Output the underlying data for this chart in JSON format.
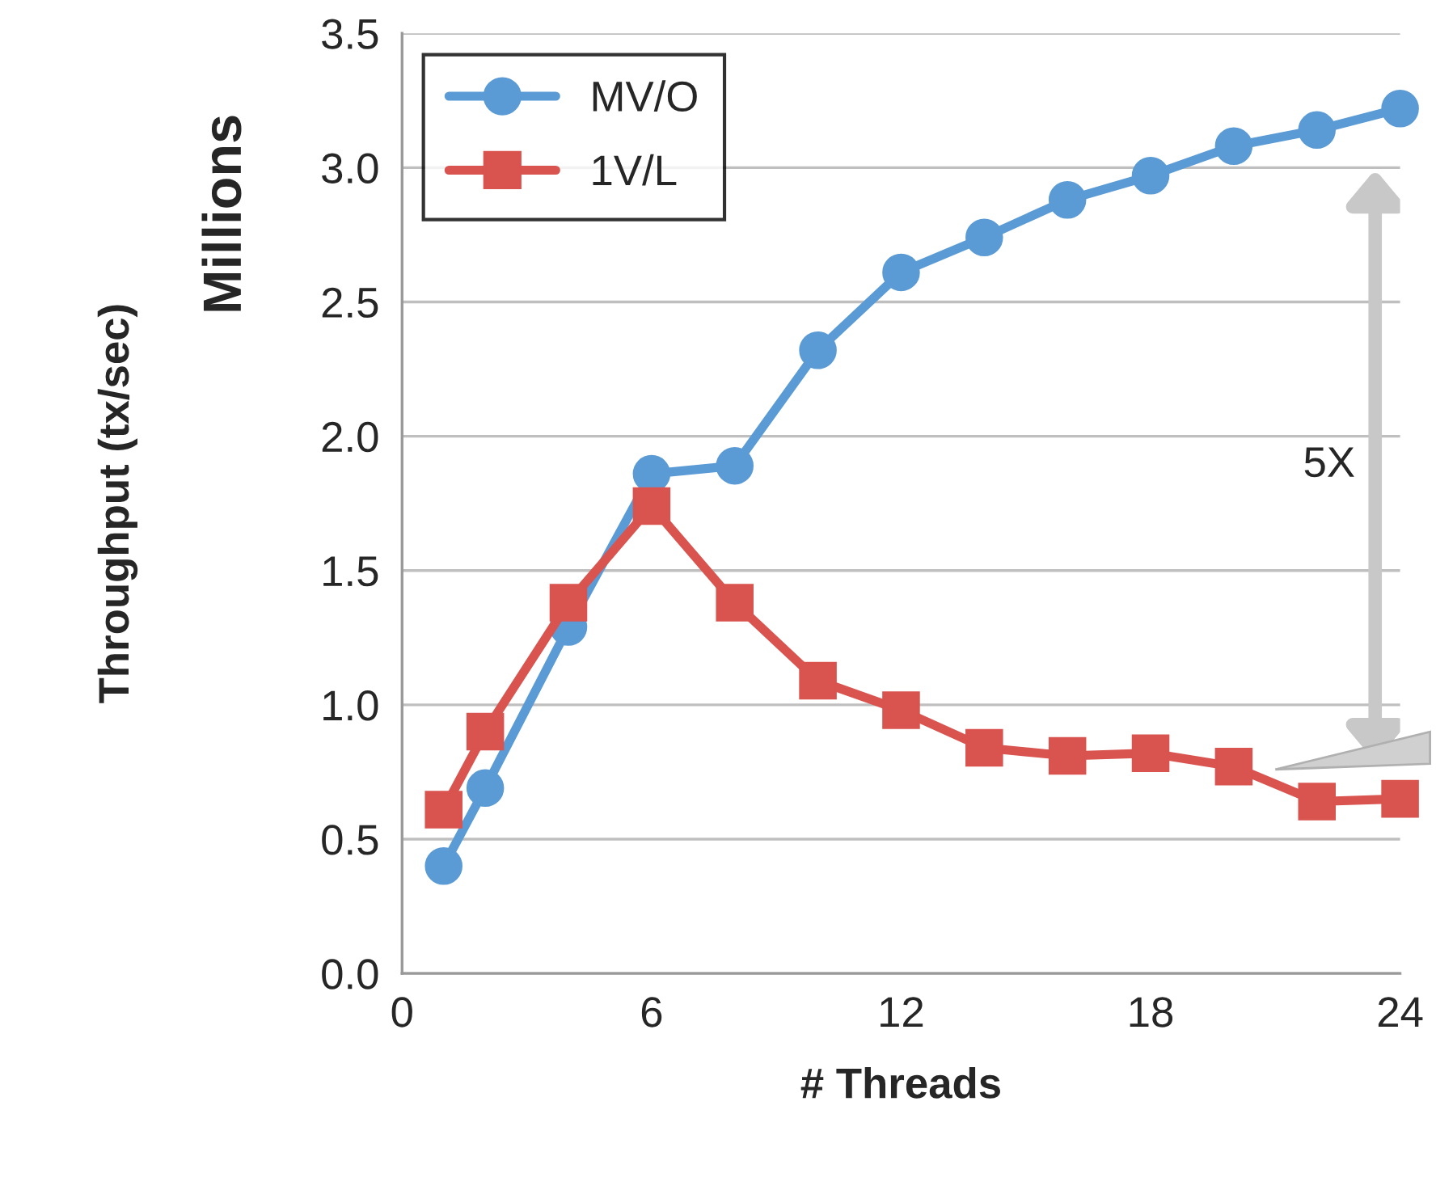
{
  "chart_data": {
    "type": "line",
    "xlabel": "# Threads",
    "ylabel": "Throughput (tx/sec)",
    "x": [
      1,
      2,
      4,
      6,
      8,
      10,
      12,
      14,
      16,
      18,
      20,
      22,
      24
    ],
    "series": [
      {
        "name": "MV/O",
        "color": "#5b9bd5",
        "marker": "circle",
        "values": [
          0.4,
          0.69,
          1.29,
          1.86,
          1.89,
          2.32,
          2.61,
          2.74,
          2.88,
          2.97,
          3.08,
          3.14,
          3.22
        ]
      },
      {
        "name": "1V/L",
        "color": "#d9534f",
        "marker": "square",
        "values": [
          0.61,
          0.9,
          1.38,
          1.74,
          1.38,
          1.09,
          0.98,
          0.84,
          0.81,
          0.82,
          0.77,
          0.64,
          0.65
        ]
      }
    ],
    "xlim": [
      0,
      24
    ],
    "xticks": [
      0,
      6,
      12,
      18,
      24
    ],
    "ylim": [
      0,
      3.5
    ],
    "yticks": [
      {
        "value": 0,
        "label": "0.0"
      },
      {
        "value": 0.5,
        "label": "0.5"
      },
      {
        "value": 1,
        "label": "1.0"
      },
      {
        "value": 1.5,
        "label": "1.5"
      },
      {
        "value": 2,
        "label": "2.0"
      },
      {
        "value": 2.5,
        "label": "2.5"
      },
      {
        "value": 3,
        "label": "3.0"
      },
      {
        "value": 3.5,
        "label": "3.5"
      }
    ],
    "annotations": [
      "Millions",
      "5X"
    ],
    "grid": "y",
    "legend": "top left",
    "line_style": "solid"
  }
}
